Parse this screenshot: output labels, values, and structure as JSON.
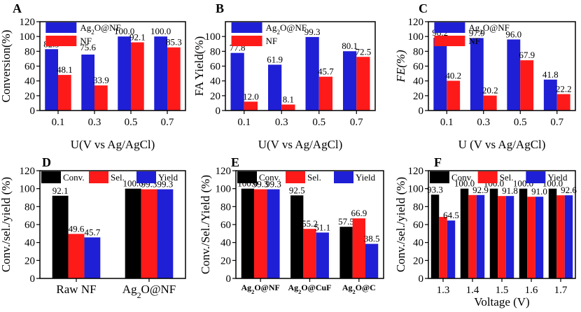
{
  "chart_data": [
    {
      "type": "bar",
      "panel_label": "A",
      "categories": [
        "0.1",
        "0.3",
        "0.5",
        "0.7"
      ],
      "series": [
        {
          "name": "Ag2O@NF",
          "color": "#1f1fd6",
          "values": [
            82.9,
            75.6,
            100.0,
            100.0
          ],
          "labels": [
            "82.9",
            "75.6",
            "100.0",
            "100.0"
          ]
        },
        {
          "name": "NF",
          "color": "#ff1a1a",
          "values": [
            48.1,
            33.9,
            92.1,
            85.3
          ],
          "labels": [
            "48.1",
            "33.9",
            "92.1",
            "85.3"
          ]
        }
      ],
      "ylabel": "Conversion(%)",
      "xlabel": "U(V vs Ag/AgCl)",
      "ylim": [
        0,
        120
      ],
      "yticks": [
        0,
        20,
        40,
        60,
        80,
        100,
        120
      ],
      "legend": "top-right"
    },
    {
      "type": "bar",
      "panel_label": "B",
      "categories": [
        "0.1",
        "0.3",
        "0.5",
        "0.7"
      ],
      "series": [
        {
          "name": "Ag2O@NF",
          "color": "#1f1fd6",
          "values": [
            77.8,
            61.9,
            99.3,
            80.1
          ],
          "labels": [
            "77.8",
            "61.9",
            "99.3",
            "80.1"
          ]
        },
        {
          "name": "NF",
          "color": "#ff1a1a",
          "values": [
            12.0,
            8.1,
            45.7,
            72.5
          ],
          "labels": [
            "12.0",
            "8.1",
            "45.7",
            "72.5"
          ]
        }
      ],
      "ylabel": "FA Yield(%)",
      "xlabel": "U(V vs Ag/AgCl)",
      "ylim": [
        0,
        120
      ],
      "yticks": [
        0,
        20,
        40,
        60,
        80,
        100
      ],
      "legend": "top-right"
    },
    {
      "type": "bar",
      "panel_label": "C",
      "categories": [
        "0.1",
        "0.3",
        "0.5",
        "0.7"
      ],
      "series": [
        {
          "name": "Ag2O@NF",
          "color": "#1f1fd6",
          "values": [
            98.2,
            97.9,
            96.0,
            41.8
          ],
          "labels": [
            "98.2",
            "97.9",
            "96.0",
            "41.8"
          ]
        },
        {
          "name": "NF",
          "color": "#ff1a1a",
          "values": [
            40.2,
            20.2,
            67.9,
            22.2
          ],
          "labels": [
            "40.2",
            "20.2",
            "67.9",
            "22.2"
          ]
        }
      ],
      "ylabel": "FE(%)",
      "xlabel": "U (V vs Ag/AgCl)",
      "ylim": [
        0,
        120
      ],
      "yticks": [
        0,
        20,
        40,
        60,
        80,
        100,
        120
      ],
      "legend": "top-right"
    },
    {
      "type": "bar",
      "panel_label": "D",
      "categories": [
        "Raw NF",
        "Ag2O@NF"
      ],
      "series": [
        {
          "name": "Conv.",
          "color": "#000000",
          "values": [
            92.1,
            100.0
          ],
          "labels": [
            "92.1",
            "100.0"
          ]
        },
        {
          "name": "Sel.",
          "color": "#ff1a1a",
          "values": [
            49.6,
            99.3
          ],
          "labels": [
            "49.6",
            "99.3"
          ]
        },
        {
          "name": "Yield",
          "color": "#1f1fd6",
          "values": [
            45.7,
            99.3
          ],
          "labels": [
            "45.7",
            "99.3"
          ]
        }
      ],
      "ylabel": "Conv./sel./yield (%)",
      "xlabel": "",
      "ylim": [
        0,
        120
      ],
      "yticks": [
        0,
        20,
        40,
        60,
        80,
        100,
        120
      ],
      "legend": "top"
    },
    {
      "type": "bar",
      "panel_label": "E",
      "categories": [
        "Ag2O@NF",
        "Ag2O@CuF",
        "Ag2O@C"
      ],
      "series": [
        {
          "name": "Conv.",
          "color": "#000000",
          "values": [
            100.0,
            92.5,
            57.5
          ],
          "labels": [
            "100.0",
            "92.5",
            "57.5"
          ]
        },
        {
          "name": "Sel.",
          "color": "#ff1a1a",
          "values": [
            99.3,
            55.2,
            66.9
          ],
          "labels": [
            "99.3",
            "55.2",
            "66.9"
          ]
        },
        {
          "name": "Yield",
          "color": "#1f1fd6",
          "values": [
            99.3,
            51.1,
            38.5
          ],
          "labels": [
            "99.3",
            "51.1",
            "38.5"
          ]
        }
      ],
      "ylabel": "Conv./Sel./Yield (%)",
      "xlabel": "",
      "ylim": [
        0,
        120
      ],
      "yticks": [
        0,
        20,
        40,
        60,
        80,
        100,
        120
      ],
      "legend": "top"
    },
    {
      "type": "bar",
      "panel_label": "F",
      "categories": [
        "1.3",
        "1.4",
        "1.5",
        "1.6",
        "1.7"
      ],
      "series": [
        {
          "name": "Conv.",
          "color": "#000000",
          "values": [
            93.3,
            100.0,
            100.0,
            100.0,
            100.0
          ],
          "labels": [
            "93.3",
            "100.0",
            "100.0",
            "100.0",
            "100.0"
          ]
        },
        {
          "name": "Sel.",
          "color": "#ff1a1a",
          "values": [
            68.5,
            92.9,
            91.8,
            91.0,
            92.6
          ],
          "labels": [
            "",
            "",
            "",
            "",
            ""
          ]
        },
        {
          "name": "Yield",
          "color": "#1f1fd6",
          "values": [
            64.5,
            92.9,
            91.8,
            91.0,
            92.6
          ],
          "labels": [
            "64.5",
            "92.9",
            "91.8",
            "91.0",
            "92.6"
          ]
        }
      ],
      "ylabel": "Conv./sel./yield (%)",
      "xlabel": "Voltage (V)",
      "ylim": [
        0,
        120
      ],
      "yticks": [
        0,
        20,
        40,
        60,
        80,
        100,
        120
      ],
      "legend": "top"
    }
  ]
}
